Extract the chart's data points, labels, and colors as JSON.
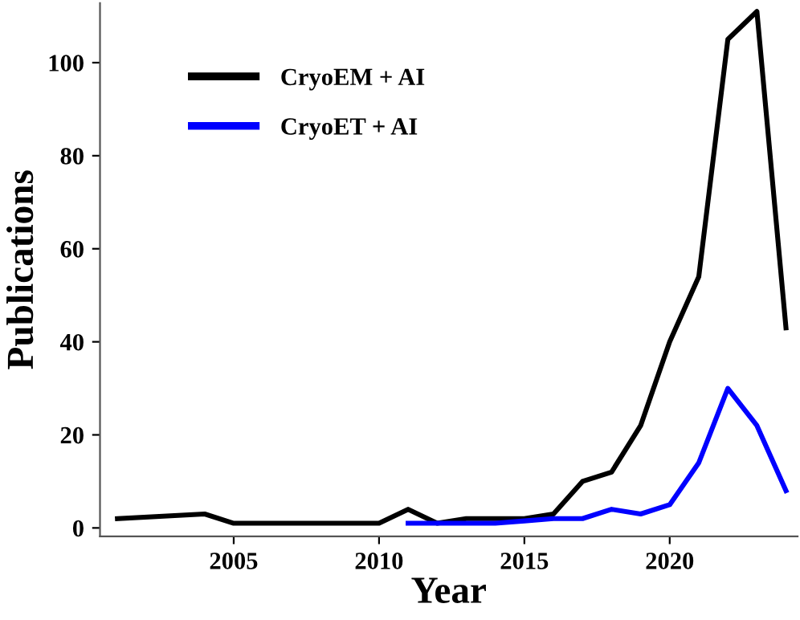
{
  "chart_data": {
    "type": "line",
    "xlabel": "Year",
    "ylabel": "Publications",
    "series": [
      {
        "name": "CryoEM + AI",
        "color": "#000000",
        "x": [
          2001,
          2004,
          2005,
          2006,
          2007,
          2008,
          2009,
          2010,
          2011,
          2012,
          2013,
          2014,
          2015,
          2016,
          2017,
          2018,
          2019,
          2020,
          2021,
          2022,
          2023,
          2024
        ],
        "values": [
          2,
          3,
          1,
          1,
          1,
          1,
          1,
          1,
          4,
          1,
          2,
          2,
          2,
          3,
          10,
          12,
          22,
          40,
          54,
          105,
          111,
          43
        ]
      },
      {
        "name": "CryoET + AI",
        "color": "#0000ff",
        "x": [
          2011,
          2012,
          2013,
          2014,
          2015,
          2016,
          2017,
          2018,
          2019,
          2020,
          2021,
          2022,
          2023,
          2024
        ],
        "values": [
          1,
          1,
          1,
          1,
          1.5,
          2,
          2,
          4,
          3,
          5,
          14,
          30,
          22,
          8
        ]
      }
    ],
    "xlim": [
      2000.4,
      2024.4
    ],
    "ylim": [
      -1.8,
      112.8
    ],
    "xticks": [
      2005,
      2010,
      2015,
      2020
    ],
    "yticks": [
      0,
      20,
      40,
      60,
      80,
      100
    ],
    "grid": false,
    "legend": "top left",
    "marker": "none",
    "line_style": "solid"
  }
}
